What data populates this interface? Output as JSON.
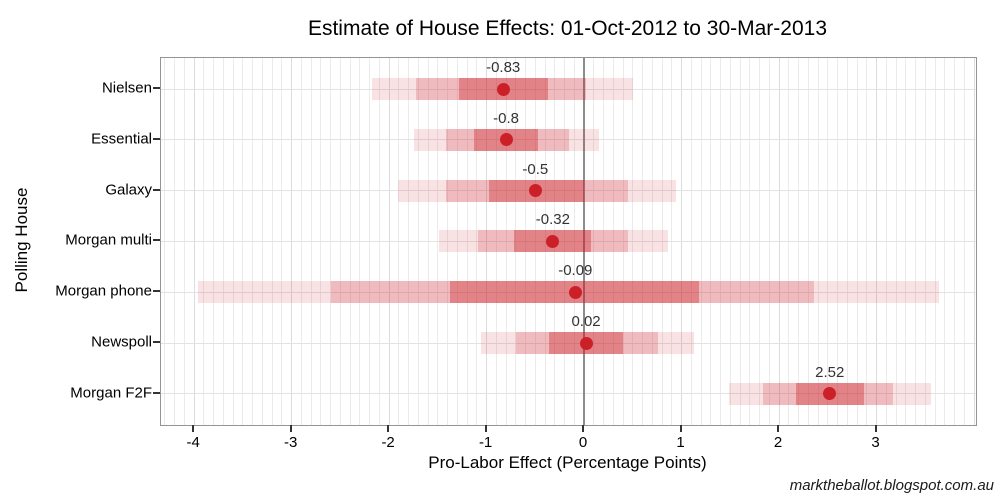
{
  "title": "Estimate of House Effects: 01-Oct-2012 to 30-Mar-2013",
  "watermark": "marktheballot.blogspot.com.au",
  "chart_data": {
    "type": "interval",
    "title": "Estimate of House Effects: 01-Oct-2012 to 30-Mar-2013",
    "xlabel": "Pro-Labor Effect (Percentage Points)",
    "ylabel": "Polling House",
    "xlim": [
      -4.34,
      4.02
    ],
    "x_ticks": [
      -4,
      -3,
      -2,
      -1,
      0,
      1,
      2,
      3
    ],
    "x_tick_labels": [
      "-4",
      "-3",
      "-2",
      "-1",
      "0",
      "1",
      "2",
      "3"
    ],
    "grid": {
      "minor_step": 0.1,
      "major_step": 1,
      "zero_line": 0
    },
    "legend": "none",
    "rows": [
      {
        "label": "Nielsen",
        "estimate": -0.83,
        "estimate_label": "-0.83",
        "outer": [
          -2.18,
          0.5
        ],
        "mid": [
          -1.72,
          0.02
        ],
        "inner": [
          -1.28,
          -0.37
        ]
      },
      {
        "label": "Essential",
        "estimate": -0.8,
        "estimate_label": "-0.8",
        "outer": [
          -1.74,
          0.15
        ],
        "mid": [
          -1.42,
          -0.15
        ],
        "inner": [
          -1.13,
          -0.47
        ]
      },
      {
        "label": "Galaxy",
        "estimate": -0.5,
        "estimate_label": "-0.5",
        "outer": [
          -1.91,
          0.94
        ],
        "mid": [
          -1.42,
          0.45
        ],
        "inner": [
          -0.98,
          0.0
        ]
      },
      {
        "label": "Morgan multi",
        "estimate": -0.32,
        "estimate_label": "-0.32",
        "outer": [
          -1.49,
          0.86
        ],
        "mid": [
          -1.09,
          0.45
        ],
        "inner": [
          -0.72,
          0.07
        ]
      },
      {
        "label": "Morgan phone",
        "estimate": -0.09,
        "estimate_label": "-0.09",
        "outer": [
          -3.96,
          3.64
        ],
        "mid": [
          -2.6,
          2.36
        ],
        "inner": [
          -1.38,
          1.18
        ]
      },
      {
        "label": "Newspoll",
        "estimate": 0.02,
        "estimate_label": "0.02",
        "outer": [
          -1.06,
          1.13
        ],
        "mid": [
          -0.7,
          0.76
        ],
        "inner": [
          -0.36,
          0.4
        ]
      },
      {
        "label": "Morgan F2F",
        "estimate": 2.52,
        "estimate_label": "2.52",
        "outer": [
          1.49,
          3.56
        ],
        "mid": [
          1.84,
          3.17
        ],
        "inner": [
          2.17,
          2.87
        ]
      }
    ],
    "colors": {
      "point": "#cb2027",
      "band_rgb": "203,32,39",
      "band_alphas": [
        0.13,
        0.195,
        0.357
      ],
      "minor_grid": "#ebebeb",
      "major_grid": "#dcdcdc",
      "zero_line": "#8c8c8c",
      "panel_border": "#949494"
    }
  }
}
